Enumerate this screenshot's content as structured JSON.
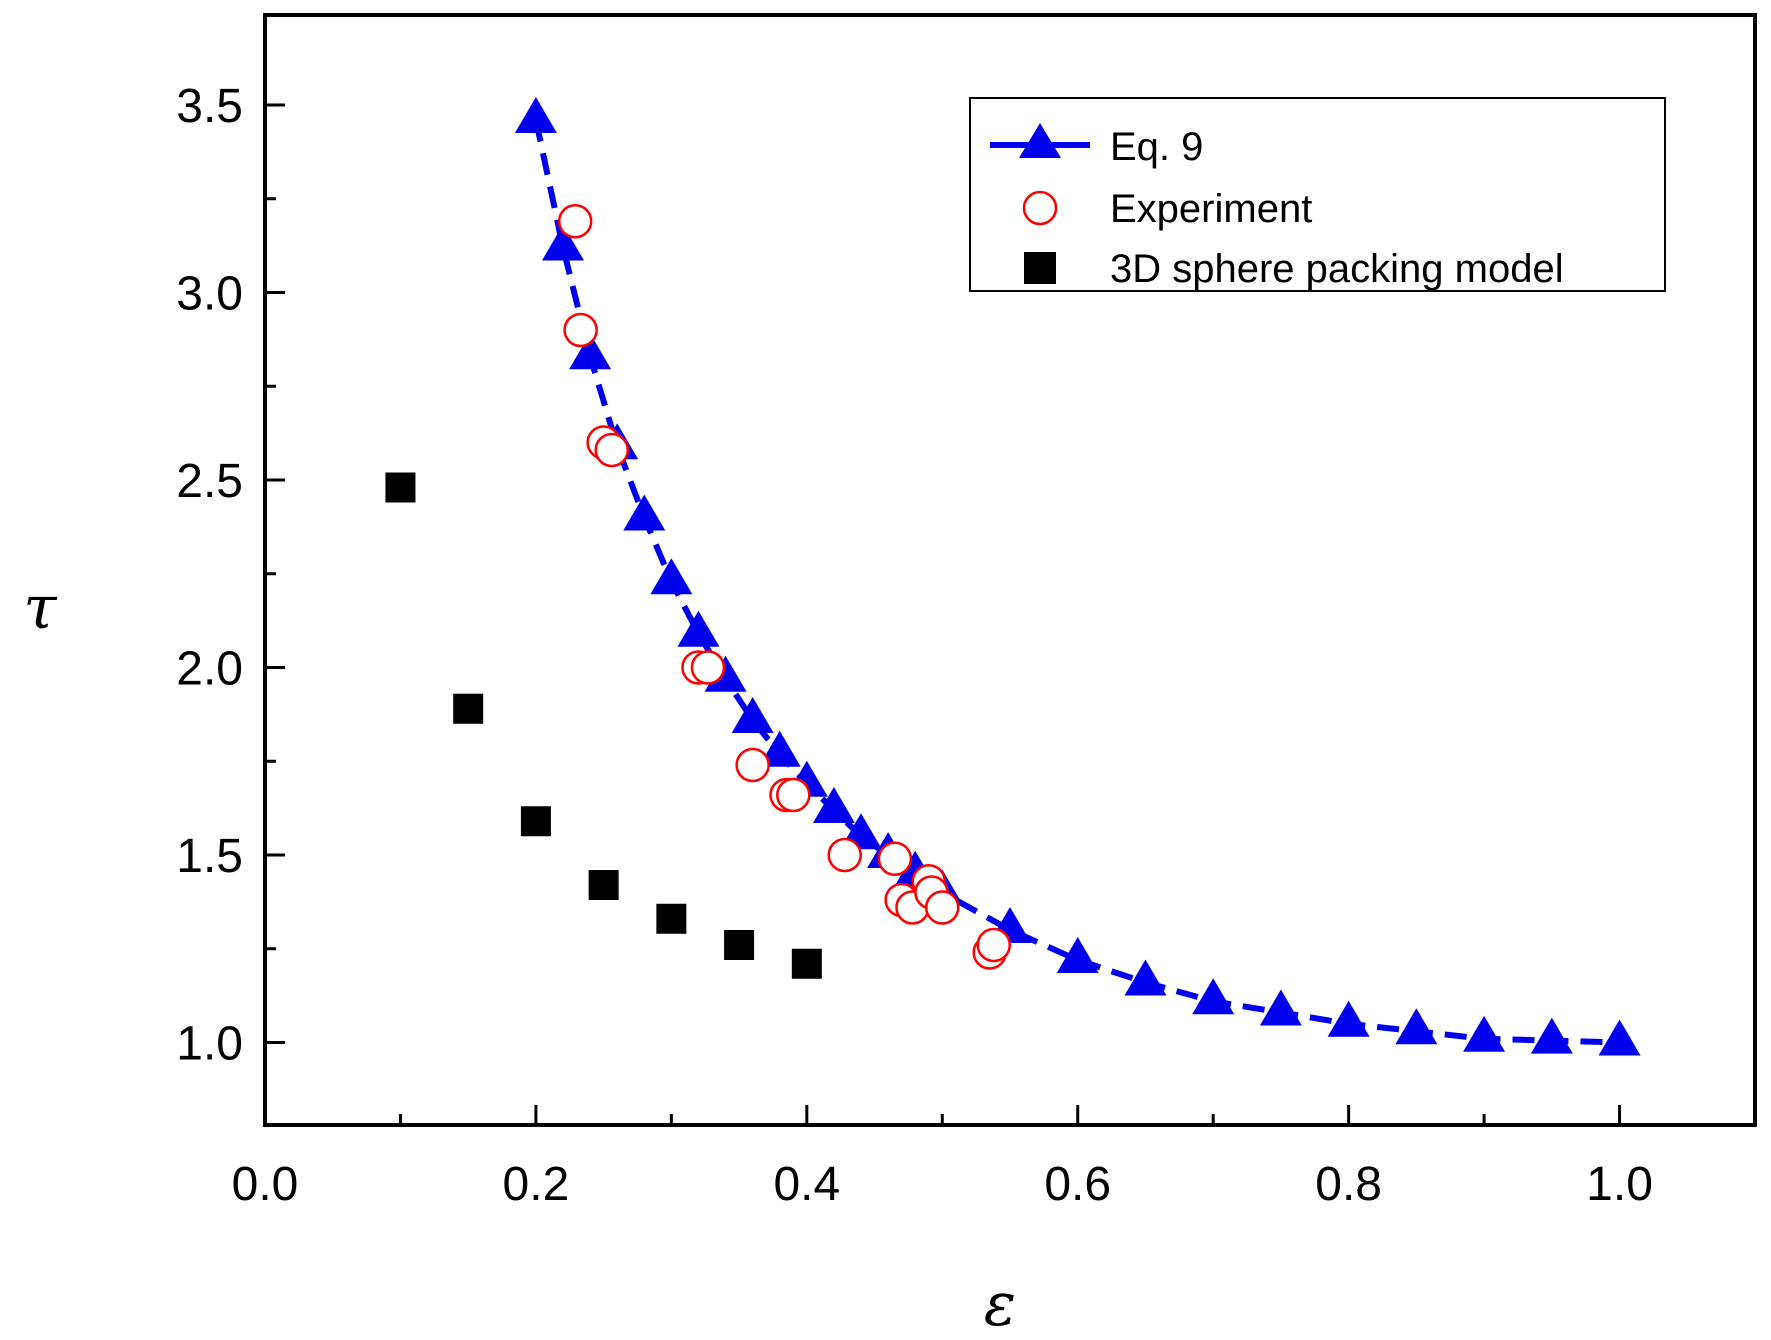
{
  "chart_data": {
    "type": "scatter",
    "xlabel": "ε",
    "ylabel": "τ",
    "xlim": [
      0.0,
      1.1
    ],
    "ylim": [
      0.78,
      3.74
    ],
    "xticks": [
      0.0,
      0.2,
      0.4,
      0.6,
      0.8,
      1.0
    ],
    "xtick_labels": [
      "0.0",
      "0.2",
      "0.4",
      "0.6",
      "0.8",
      "1.0"
    ],
    "yticks": [
      1.0,
      1.5,
      2.0,
      2.5,
      3.0,
      3.5
    ],
    "ytick_labels": [
      "1.0",
      "1.5",
      "2.0",
      "2.5",
      "3.0",
      "3.5"
    ],
    "legend_position": "top-right",
    "colors": {
      "eq9": "#0000ee",
      "experiment": "#ff0000",
      "sphere": "#000000",
      "axis": "#000000"
    },
    "series": [
      {
        "name": "Eq. 9",
        "marker": "triangle",
        "line": "dashed",
        "x": [
          0.2,
          0.22,
          0.24,
          0.26,
          0.28,
          0.3,
          0.32,
          0.34,
          0.36,
          0.38,
          0.4,
          0.42,
          0.44,
          0.46,
          0.48,
          0.5,
          0.55,
          0.6,
          0.65,
          0.7,
          0.75,
          0.8,
          0.85,
          0.9,
          0.95,
          1.0
        ],
        "y": [
          3.46,
          3.12,
          2.83,
          2.59,
          2.4,
          2.23,
          2.09,
          1.97,
          1.86,
          1.77,
          1.69,
          1.62,
          1.55,
          1.5,
          1.45,
          1.4,
          1.3,
          1.22,
          1.16,
          1.11,
          1.08,
          1.05,
          1.03,
          1.01,
          1.005,
          1.0
        ]
      },
      {
        "name": "Experiment",
        "marker": "open-circle",
        "x": [
          0.229,
          0.233,
          0.25,
          0.256,
          0.32,
          0.327,
          0.36,
          0.385,
          0.39,
          0.428,
          0.465,
          0.47,
          0.478,
          0.49,
          0.492,
          0.5,
          0.535,
          0.538
        ],
        "y": [
          3.19,
          2.9,
          2.6,
          2.58,
          2.0,
          2.0,
          1.74,
          1.66,
          1.66,
          1.5,
          1.49,
          1.38,
          1.36,
          1.43,
          1.4,
          1.36,
          1.24,
          1.26
        ]
      },
      {
        "name": "3D sphere packing model",
        "marker": "filled-square",
        "x": [
          0.1,
          0.15,
          0.2,
          0.25,
          0.3,
          0.35,
          0.4
        ],
        "y": [
          2.48,
          1.89,
          1.59,
          1.42,
          1.33,
          1.26,
          1.21
        ]
      }
    ]
  }
}
